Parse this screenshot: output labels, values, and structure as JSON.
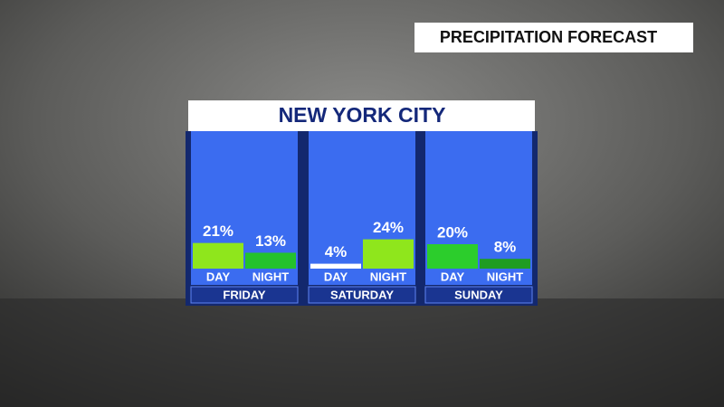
{
  "chart_data": {
    "type": "bar",
    "badge": "PRECIPITATION FORECAST",
    "title": "NEW YORK CITY",
    "groups": [
      {
        "name": "FRIDAY",
        "categories": [
          "DAY",
          "NIGHT"
        ],
        "values": [
          21,
          13
        ],
        "value_labels": [
          "21%",
          "13%"
        ],
        "colors": [
          "#8fe61c",
          "#24c22c"
        ]
      },
      {
        "name": "SATURDAY",
        "categories": [
          "DAY",
          "NIGHT"
        ],
        "values": [
          4,
          24
        ],
        "value_labels": [
          "4%",
          "24%"
        ],
        "colors": [
          "#ffffff",
          "#8fe61c"
        ]
      },
      {
        "name": "SUNDAY",
        "categories": [
          "DAY",
          "NIGHT"
        ],
        "values": [
          20,
          8
        ],
        "value_labels": [
          "20%",
          "8%"
        ],
        "colors": [
          "#2ccd2c",
          "#1f9c22"
        ]
      }
    ]
  }
}
